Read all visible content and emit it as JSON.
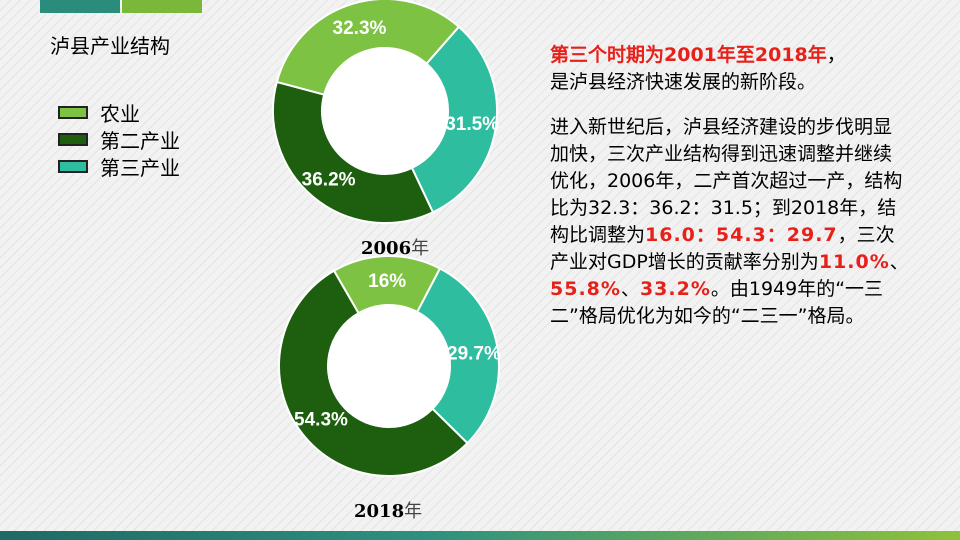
{
  "chart_title": "泸县产业结构",
  "legend": [
    {
      "label": "农业",
      "color": "#7dc242"
    },
    {
      "label": "第二产业",
      "color": "#1d5e0f"
    },
    {
      "label": "第三产业",
      "color": "#2ebd9e"
    }
  ],
  "chart_data": [
    {
      "type": "pie",
      "title": "2006年",
      "categories": [
        "农业",
        "第二产业",
        "第三产业"
      ],
      "values": [
        32.3,
        36.2,
        31.5
      ],
      "labels": [
        "32.3%",
        "36.2%",
        "31.5%"
      ],
      "year_num": "2006",
      "year_unit": "年"
    },
    {
      "type": "pie",
      "title": "2018年",
      "categories": [
        "农业",
        "第二产业",
        "第三产业"
      ],
      "values": [
        16.0,
        54.3,
        29.7
      ],
      "labels": [
        "16%",
        "54.3%",
        "29.7%"
      ],
      "year_num": "2018",
      "year_unit": "年"
    }
  ],
  "text": {
    "headline_red": "第三个时期为2001年至2018年",
    "headline_punct": "，",
    "headline_rest": "是泸县经济快速发展的新阶段。",
    "body_1": "进入新世纪后，泸县经济建设的步伐明显加快，三次产业结构得到迅速调整并继续优化，2006年，二产首次超过一产，结构比为32.3：36.2：31.5；到2018年，结构比调整为",
    "ratio_2018": "16.0：54.3：29.7",
    "body_2": "，三次产业对GDP增长的贡献率分别为",
    "contrib_1": "11.0%",
    "sep_1": "、",
    "contrib_2": "55.8%",
    "sep_2": "、",
    "contrib_3": "33.2%",
    "body_3": "。由1949年的“一三二”格局优化为如今的“二三一”格局。"
  }
}
